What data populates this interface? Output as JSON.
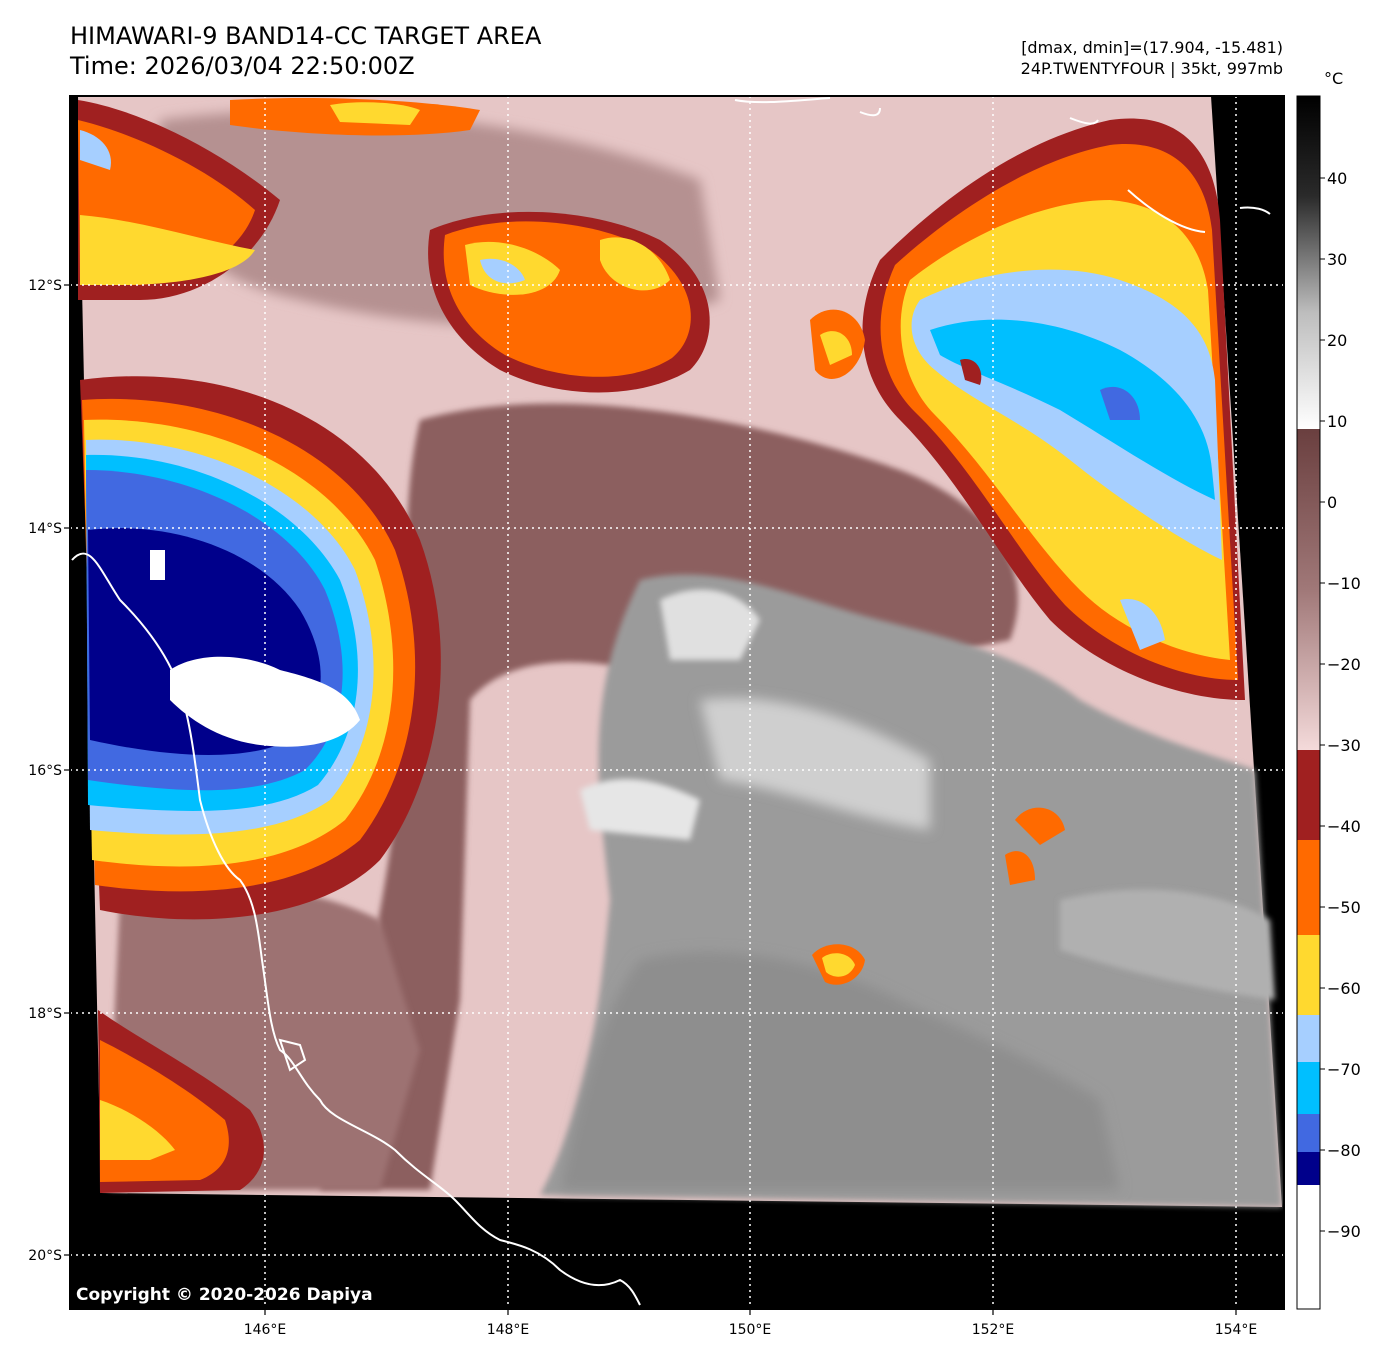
{
  "header": {
    "title_line1": "HIMAWARI-9 BAND14-CC TARGET AREA",
    "title_line2": "Time: 2026/03/04 22:50:00Z",
    "dmax_dmin": "[dmax, dmin]=(17.904, -15.481)",
    "storm_info": "24P.TWENTYFOUR | 35kt, 997mb"
  },
  "map": {
    "lat_labels": [
      "12°S",
      "14°S",
      "16°S",
      "18°S",
      "20°S"
    ],
    "lon_labels": [
      "146°E",
      "148°E",
      "150°E",
      "152°E",
      "154°E"
    ],
    "copyright": "Copyright © 2020-2026 Dapiya"
  },
  "colorbar": {
    "unit": "°C",
    "ticks": [
      "40",
      "30",
      "20",
      "10",
      "0",
      "−10",
      "−20",
      "−30",
      "−40",
      "−50",
      "−60",
      "−70",
      "−80",
      "−90"
    ]
  },
  "colors": {
    "background_nodata": "#000000",
    "warm_pink": "#e8c8c8",
    "mid_brown": "#8a5a5a",
    "dark_red": "#a02020",
    "orange": "#ff6a00",
    "yellow": "#ffd92f",
    "light_blue": "#a6cfff",
    "cyan": "#00bfff",
    "blue": "#4169e1",
    "navy": "#00008b",
    "cold_white": "#ffffff",
    "gray": "#9a9a9a"
  }
}
